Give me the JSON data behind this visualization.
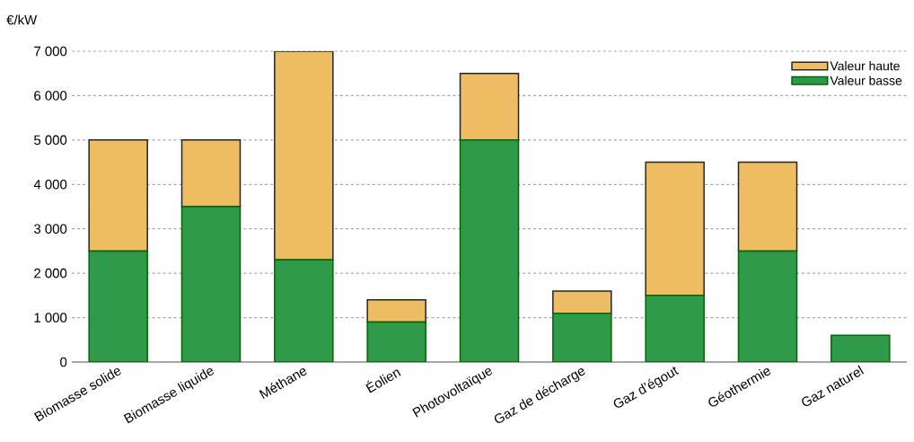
{
  "chart_data": {
    "type": "bar",
    "stacked": true,
    "ylabel": "€/kW",
    "categories": [
      "Biomasse solide",
      "Biomasse liquide",
      "Méthane",
      "Éolien",
      "Photovoltaïque",
      "Gaz de décharge",
      "Gaz d’égout",
      "Géothermie",
      "Gaz naturel"
    ],
    "series": [
      {
        "name": "Valeur basse",
        "color": "#2e9a4a",
        "values": [
          2500,
          3500,
          2300,
          900,
          5000,
          1100,
          1500,
          2500,
          600
        ]
      },
      {
        "name": "Valeur haute",
        "color": "#eebc62",
        "values": [
          2500,
          1500,
          4700,
          500,
          1500,
          500,
          3000,
          2000,
          null
        ]
      }
    ],
    "ylim": [
      0,
      7000
    ],
    "yticks": [
      0,
      {
        "value": 1000,
        "label": "1 000"
      },
      {
        "value": 2000,
        "label": "2 000"
      },
      {
        "value": 3000,
        "label": "3 000"
      },
      {
        "value": 4000,
        "label": "4 000"
      },
      {
        "value": 5000,
        "label": "5 000"
      },
      {
        "value": 6000,
        "label": "6 000"
      },
      {
        "value": 7000,
        "label": "7 000"
      }
    ],
    "grid": "y",
    "legend": "top right"
  }
}
